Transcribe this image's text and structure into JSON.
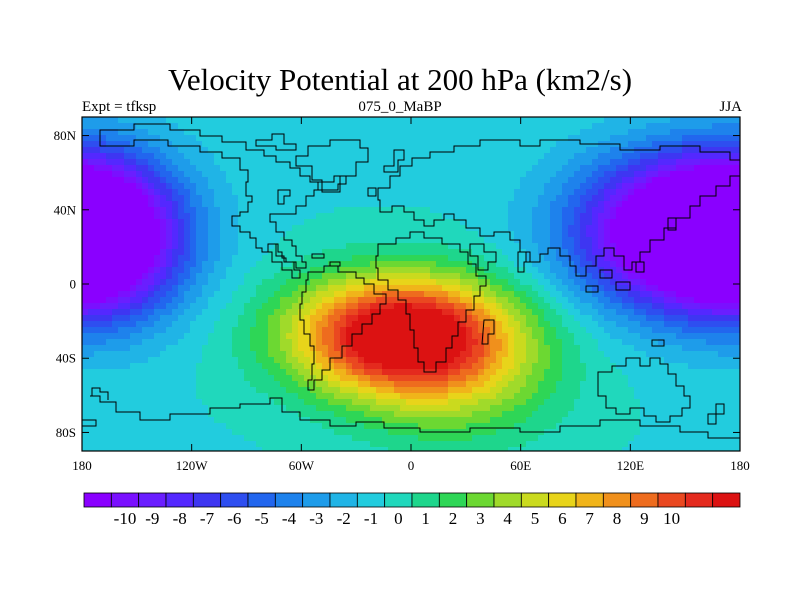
{
  "chart_data": {
    "type": "heatmap",
    "title": "Velocity Potential at 200 hPa (km2/s)",
    "left_label": "Expt = tfksp",
    "center_label": "075_0_MaBP",
    "right_label": "JJA",
    "xlim": [
      -180,
      180
    ],
    "ylim": [
      -90,
      90
    ],
    "x_ticks": [
      {
        "value": -180,
        "label": "180"
      },
      {
        "value": -120,
        "label": "120W"
      },
      {
        "value": -60,
        "label": "60W"
      },
      {
        "value": 0,
        "label": "0"
      },
      {
        "value": 60,
        "label": "60E"
      },
      {
        "value": 120,
        "label": "120E"
      },
      {
        "value": 180,
        "label": "180"
      }
    ],
    "y_ticks": [
      {
        "value": 80,
        "label": "80N"
      },
      {
        "value": 40,
        "label": "40N"
      },
      {
        "value": 0,
        "label": "0"
      },
      {
        "value": -40,
        "label": "40S"
      },
      {
        "value": -80,
        "label": "80S"
      }
    ],
    "field_centers": [
      {
        "name": "positive-max-south-atlantic-africa",
        "lon": -5,
        "lat": -27,
        "amp": 13.5,
        "sx": 42,
        "sy": 22
      },
      {
        "name": "positive-max-southern-ocean",
        "lon": 25,
        "lat": -55,
        "amp": 3.0,
        "sx": 40,
        "sy": 25
      },
      {
        "name": "negative-min-north-pacific-asia",
        "lon": 150,
        "lat": 28,
        "amp": -13.5,
        "sx": 42,
        "sy": 28
      },
      {
        "name": "negative-min-east-pacific",
        "lon": -172,
        "lat": 25,
        "amp": -10.5,
        "sx": 33,
        "sy": 30
      }
    ],
    "field_background": -1.0,
    "colorbar": {
      "labels": [
        "-10",
        "-9",
        "-8",
        "-7",
        "-6",
        "-5",
        "-4",
        "-3",
        "-2",
        "-1",
        "0",
        "1",
        "2",
        "3",
        "4",
        "5",
        "6",
        "7",
        "8",
        "9",
        "10"
      ],
      "colors": [
        "#8A00FF",
        "#7A10FF",
        "#6A1EFF",
        "#5428FF",
        "#3E36F2",
        "#2E4EF0",
        "#2266EE",
        "#1E82EC",
        "#1E9CEA",
        "#20B4E6",
        "#22CCDE",
        "#20D8BC",
        "#1ED68C",
        "#2ED656",
        "#6CD832",
        "#A0DA2A",
        "#CADA1E",
        "#E8D41A",
        "#F0B41A",
        "#F0901C",
        "#EE6C1E",
        "#EA4820",
        "#E42A1E",
        "#DC1212"
      ]
    }
  }
}
